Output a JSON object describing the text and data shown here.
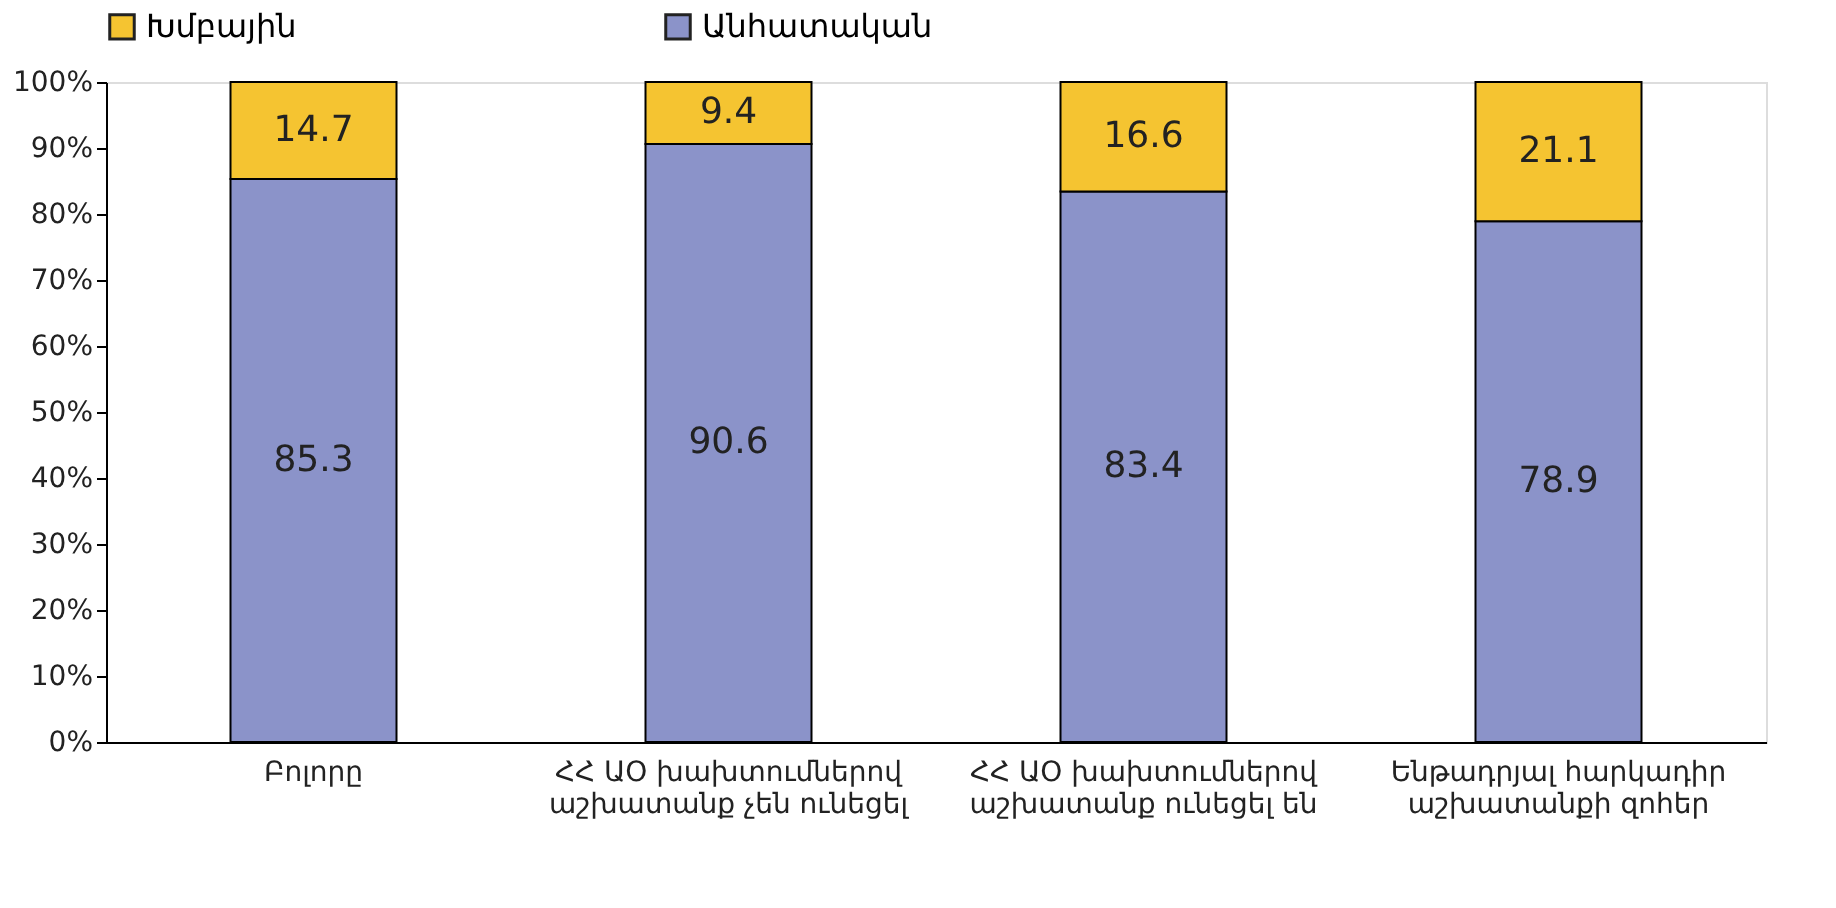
{
  "chart_data": {
    "type": "bar",
    "stacked": true,
    "categories": [
      "Բոլորը",
      "ՀՀ ԱՕ խախտումներով\nաշխատանք չեն ունեցել",
      "ՀՀ ԱՕ խախտումներով\nաշխատանք ունեցել են",
      "Ենթադրյալ հարկադիր\nաշխատանքի զոհեր"
    ],
    "series": [
      {
        "name": "Անհատական",
        "color": "#8b93c9",
        "values": [
          85.3,
          90.6,
          83.4,
          78.9
        ]
      },
      {
        "name": "Խմբային",
        "color": "#f5c431",
        "values": [
          14.7,
          9.4,
          16.6,
          21.1
        ]
      }
    ],
    "ylim": [
      0,
      100
    ],
    "yticks": [
      {
        "value": 0,
        "label": "0%"
      },
      {
        "value": 10,
        "label": "10%"
      },
      {
        "value": 20,
        "label": "20%"
      },
      {
        "value": 30,
        "label": "30%"
      },
      {
        "value": 40,
        "label": "40%"
      },
      {
        "value": 50,
        "label": "50%"
      },
      {
        "value": 60,
        "label": "60%"
      },
      {
        "value": 70,
        "label": "70%"
      },
      {
        "value": 80,
        "label": "80%"
      },
      {
        "value": 90,
        "label": "90%"
      },
      {
        "value": 100,
        "label": "100%"
      }
    ],
    "data_labels": true,
    "legend": "top",
    "grid": false
  }
}
